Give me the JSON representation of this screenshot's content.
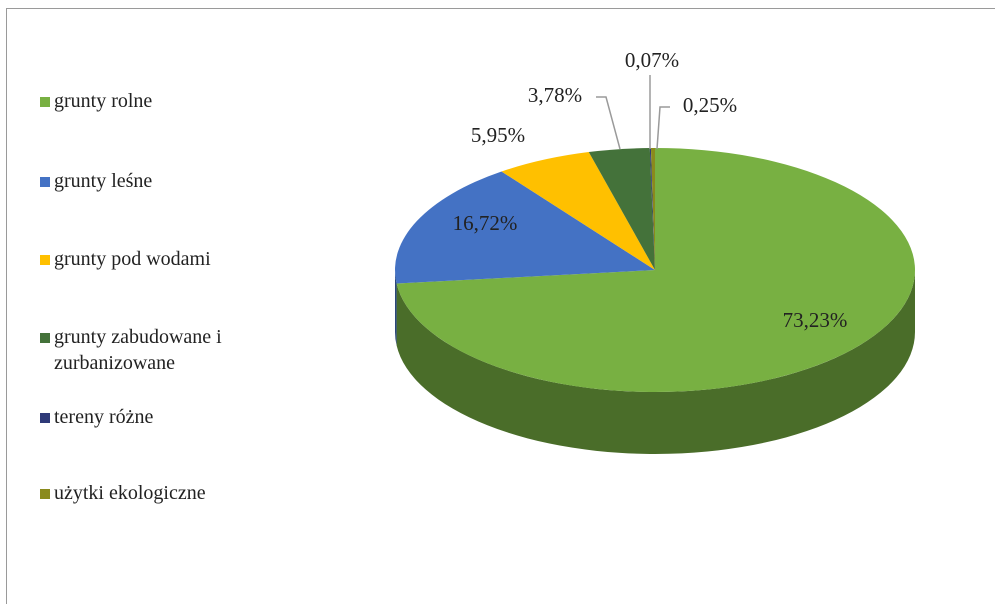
{
  "chart_data": {
    "type": "pie",
    "categories": [
      "grunty rolne",
      "grunty leśne",
      "grunty pod wodami",
      "grunty zabudowane i zurbanizowane",
      "tereny różne",
      "użytki ekologiczne"
    ],
    "values": [
      73.23,
      16.72,
      5.95,
      3.78,
      0.07,
      0.25
    ],
    "value_labels": [
      "73,23%",
      "16,72%",
      "5,95%",
      "3,78%",
      "0,07%",
      "0,25%"
    ],
    "colors": [
      "#78b042",
      "#4472c4",
      "#ffc000",
      "#44723a",
      "#2f3a78",
      "#8a8a1c"
    ],
    "legend": "left"
  }
}
